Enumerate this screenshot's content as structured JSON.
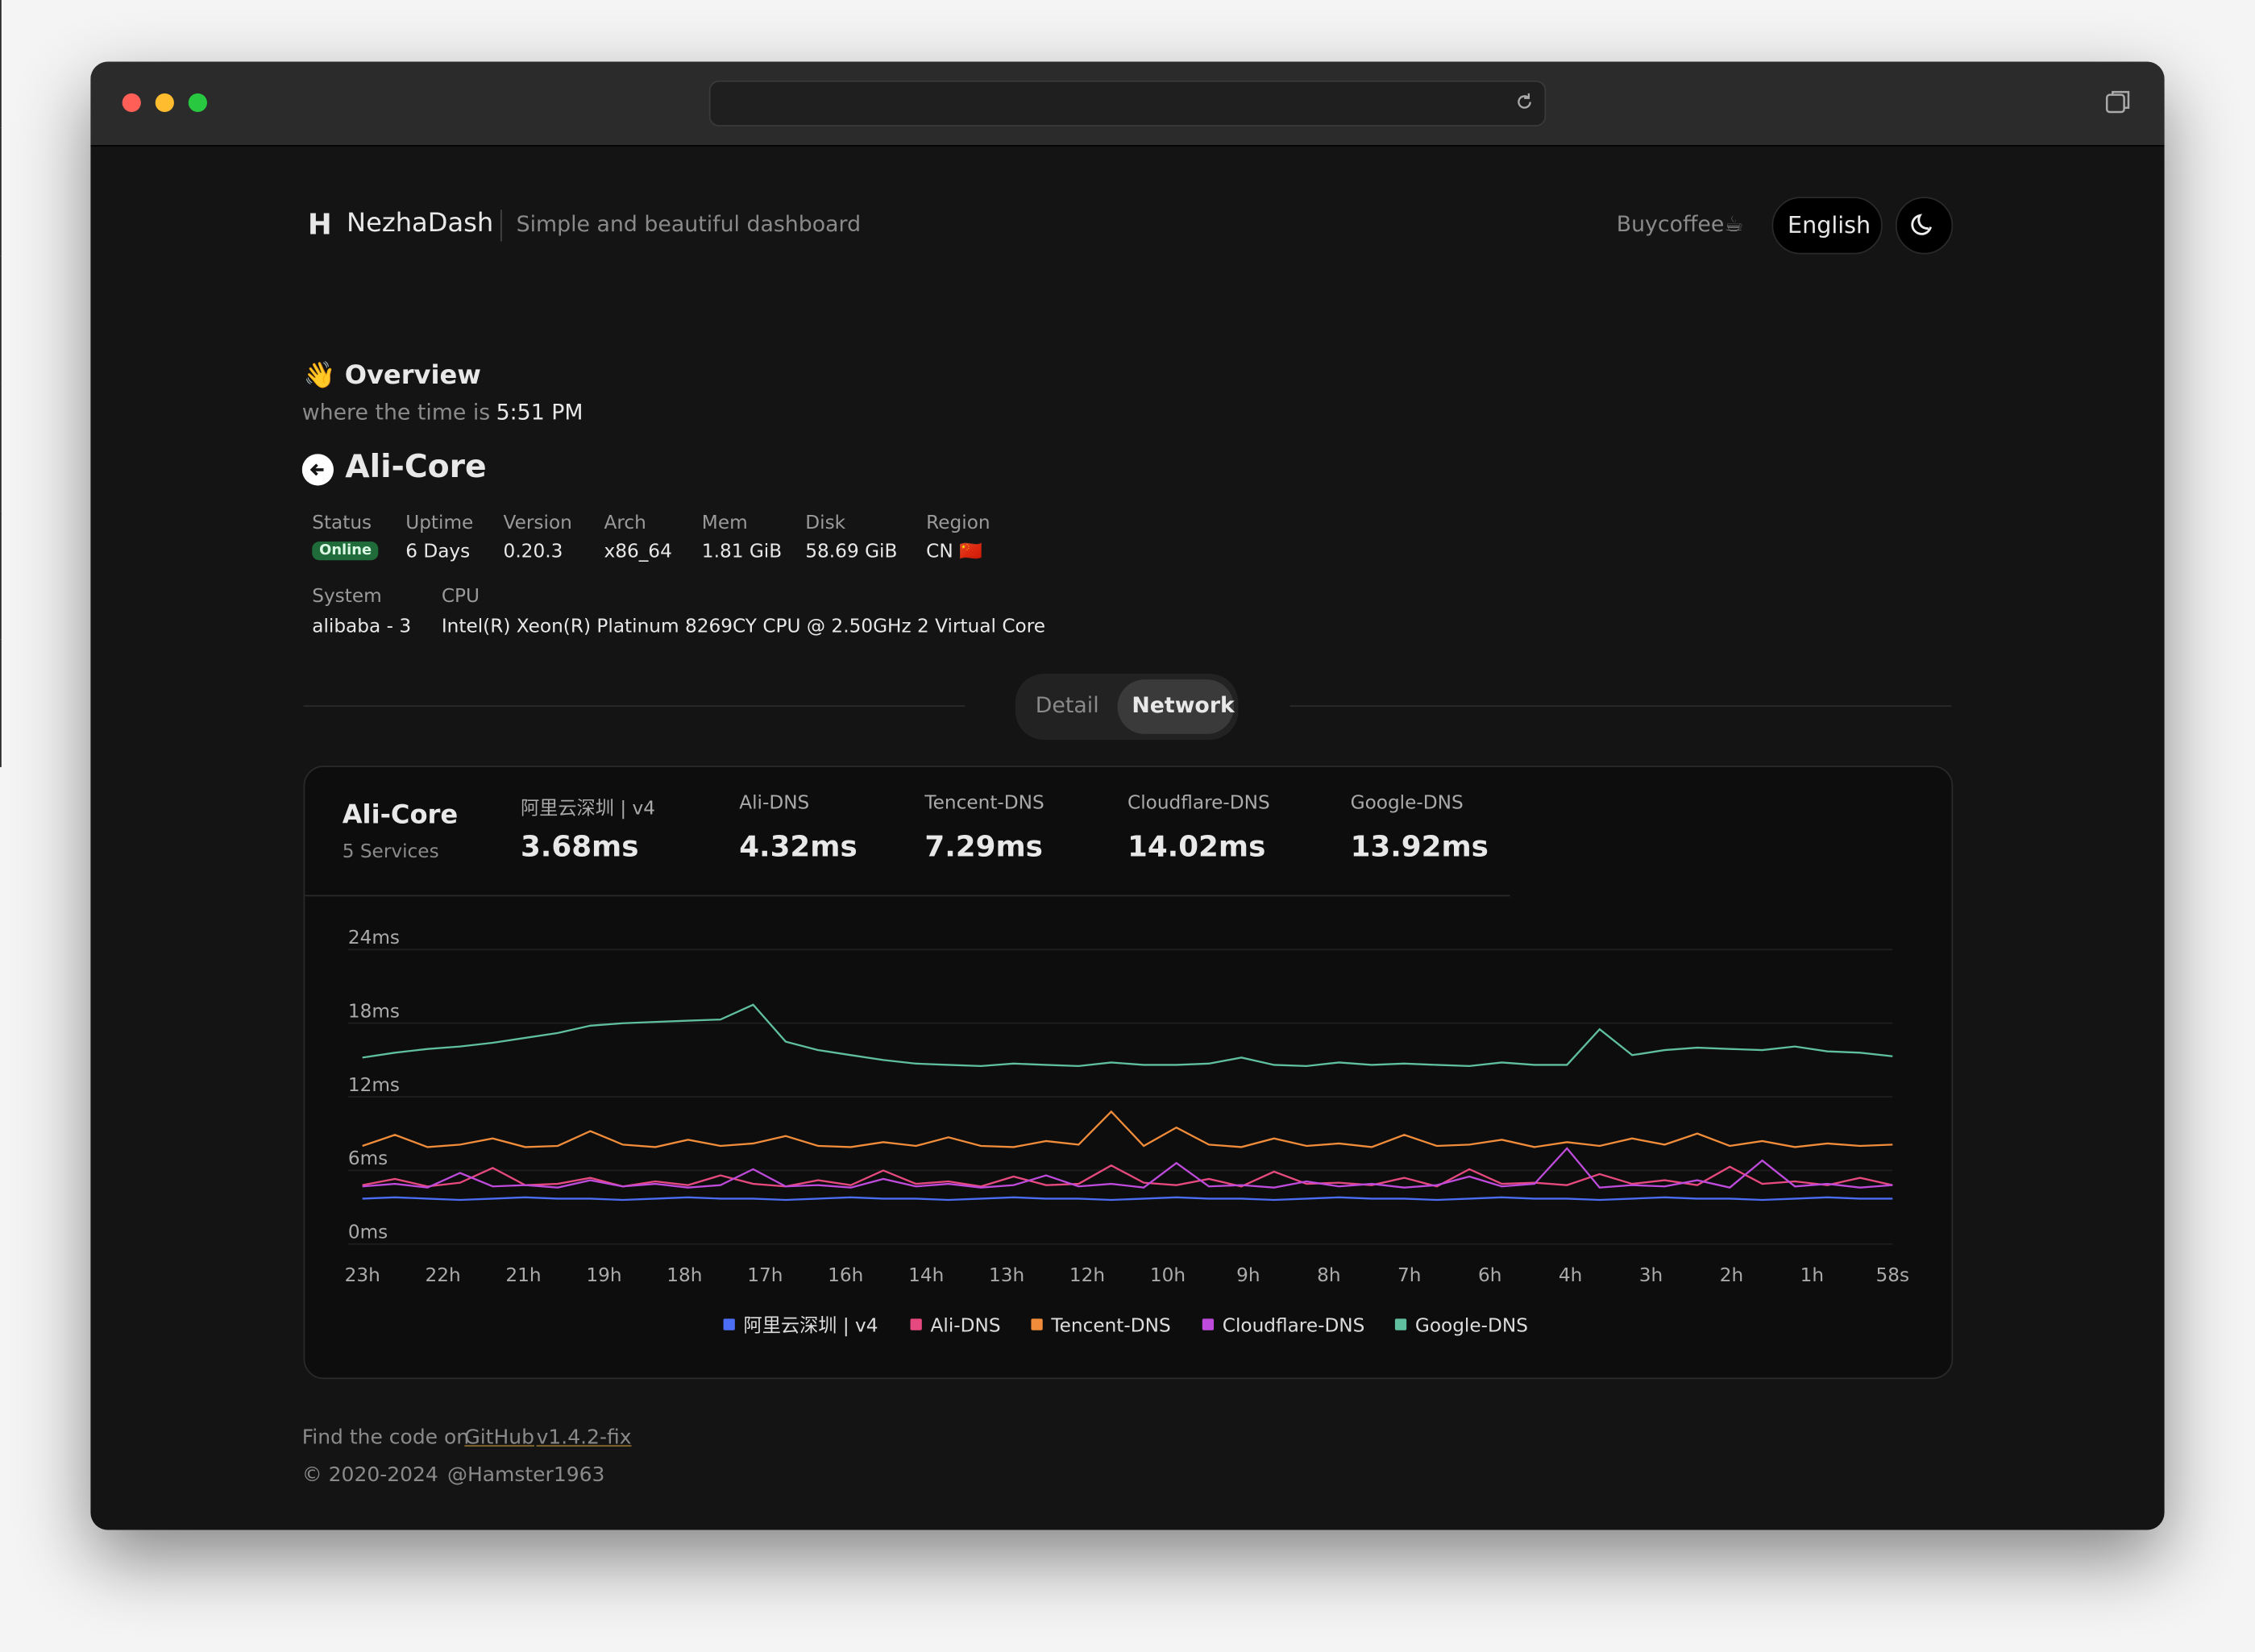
{
  "header": {
    "brand": "NezhaDash",
    "tagline": "Simple and beautiful dashboard",
    "buycoffee": "Buycoffee☕",
    "language": "English"
  },
  "overview": {
    "title": "👋 Overview",
    "time_prefix": "where the time is",
    "time": "5:51 PM"
  },
  "server": {
    "name": "Ali-Core",
    "info": [
      [
        {
          "label": "Status",
          "value": "Online"
        },
        {
          "label": "Uptime",
          "value": "6 Days"
        },
        {
          "label": "Version",
          "value": "0.20.3"
        },
        {
          "label": "Arch",
          "value": "x86_64"
        },
        {
          "label": "Mem",
          "value": "1.81 GiB"
        },
        {
          "label": "Disk",
          "value": "58.69 GiB"
        },
        {
          "label": "Region",
          "value": "CN 🇨🇳"
        }
      ],
      [
        {
          "label": "System",
          "value": "alibaba - 3"
        },
        {
          "label": "CPU",
          "value": "Intel(R) Xeon(R) Platinum 8269CY CPU @ 2.50GHz 2 Virtual Core"
        }
      ]
    ]
  },
  "tabs": [
    "Detail",
    "Network"
  ],
  "summary": {
    "name": "Ali-Core",
    "services": "5 Services",
    "items": [
      {
        "name": "阿里云深圳 | v4",
        "latency": "3.68ms"
      },
      {
        "name": "Ali-DNS",
        "latency": "4.32ms"
      },
      {
        "name": "Tencent-DNS",
        "latency": "7.29ms"
      },
      {
        "name": "Cloudflare-DNS",
        "latency": "14.02ms"
      },
      {
        "name": "Google-DNS",
        "latency": "13.92ms"
      }
    ]
  },
  "chart_data": {
    "type": "line",
    "xticks": [
      "23h",
      "22h",
      "21h",
      "19h",
      "18h",
      "17h",
      "16h",
      "14h",
      "13h",
      "12h",
      "10h",
      "9h",
      "8h",
      "7h",
      "6h",
      "4h",
      "3h",
      "2h",
      "1h",
      "58s"
    ],
    "ylim": [
      0,
      24
    ],
    "yticks": [
      {
        "value": 0,
        "label": "0ms"
      },
      {
        "value": 6,
        "label": "6ms"
      },
      {
        "value": 12,
        "label": "12ms"
      },
      {
        "value": 18,
        "label": "18ms"
      },
      {
        "value": 24,
        "label": "24ms"
      }
    ],
    "grid": true,
    "series": [
      {
        "name": "阿里云深圳 | v4",
        "color": "#4c6ef5",
        "values": [
          3.7,
          3.8,
          3.7,
          3.6,
          3.7,
          3.8,
          3.7,
          3.7,
          3.6,
          3.7,
          3.8,
          3.7,
          3.7,
          3.6,
          3.7,
          3.8,
          3.7,
          3.7,
          3.6,
          3.7,
          3.8,
          3.7,
          3.7,
          3.6,
          3.7,
          3.8,
          3.7,
          3.7,
          3.6,
          3.7,
          3.8,
          3.7,
          3.7,
          3.6,
          3.7,
          3.8,
          3.7,
          3.7,
          3.6,
          3.7,
          3.8,
          3.7,
          3.7,
          3.6,
          3.7,
          3.8,
          3.7,
          3.7
        ]
      },
      {
        "name": "Ali-DNS",
        "color": "#e64980",
        "values": [
          4.8,
          5.3,
          4.7,
          5.0,
          6.2,
          4.8,
          4.9,
          5.4,
          4.7,
          5.1,
          4.8,
          5.6,
          4.9,
          4.7,
          5.2,
          4.8,
          6.0,
          4.9,
          5.1,
          4.7,
          5.5,
          4.8,
          4.9,
          6.4,
          5.0,
          4.8,
          5.3,
          4.7,
          5.9,
          4.9,
          5.0,
          4.8,
          5.4,
          4.7,
          6.1,
          4.9,
          5.0,
          4.8,
          5.7,
          4.9,
          5.2,
          4.8,
          6.3,
          4.9,
          5.1,
          4.8,
          5.4,
          4.8
        ]
      },
      {
        "name": "Tencent-DNS",
        "color": "#f08c3a",
        "values": [
          8.0,
          8.9,
          7.9,
          8.1,
          8.6,
          7.9,
          8.0,
          9.2,
          8.1,
          7.9,
          8.5,
          8.0,
          8.2,
          8.8,
          8.0,
          7.9,
          8.3,
          8.0,
          8.7,
          8.0,
          7.9,
          8.4,
          8.1,
          10.8,
          8.0,
          9.5,
          8.1,
          7.9,
          8.6,
          8.0,
          8.2,
          7.9,
          8.9,
          8.0,
          8.1,
          8.5,
          7.9,
          8.3,
          8.0,
          8.6,
          8.1,
          9.0,
          8.0,
          8.4,
          7.9,
          8.2,
          8.0,
          8.1
        ]
      },
      {
        "name": "Cloudflare-DNS",
        "color": "#be4bdb",
        "values": [
          4.7,
          4.9,
          4.6,
          5.8,
          4.7,
          4.8,
          4.6,
          5.2,
          4.7,
          4.9,
          4.6,
          4.8,
          6.1,
          4.7,
          4.8,
          4.6,
          5.3,
          4.7,
          4.9,
          4.6,
          4.8,
          5.6,
          4.7,
          4.9,
          4.6,
          6.6,
          4.7,
          4.8,
          4.6,
          5.1,
          4.7,
          4.9,
          4.6,
          4.8,
          5.5,
          4.7,
          4.9,
          7.8,
          4.6,
          4.8,
          4.7,
          5.2,
          4.6,
          6.8,
          4.7,
          4.9,
          4.6,
          4.8
        ]
      },
      {
        "name": "Google-DNS",
        "color": "#5fbf9f",
        "values": [
          15.2,
          15.6,
          15.9,
          16.1,
          16.4,
          16.8,
          17.2,
          17.8,
          18.0,
          18.1,
          18.2,
          18.3,
          19.5,
          16.5,
          15.8,
          15.4,
          15.0,
          14.7,
          14.6,
          14.5,
          14.7,
          14.6,
          14.5,
          14.8,
          14.6,
          14.6,
          14.7,
          15.2,
          14.6,
          14.5,
          14.8,
          14.6,
          14.7,
          14.6,
          14.5,
          14.8,
          14.6,
          14.6,
          17.5,
          15.4,
          15.8,
          16.0,
          15.9,
          15.8,
          16.1,
          15.7,
          15.6,
          15.3
        ]
      }
    ]
  },
  "footer": {
    "prefix": "Find the code on",
    "github": "GitHub",
    "version": "v1.4.2-fix",
    "copyright": "© 2020-2024",
    "author": "@Hamster1963"
  }
}
